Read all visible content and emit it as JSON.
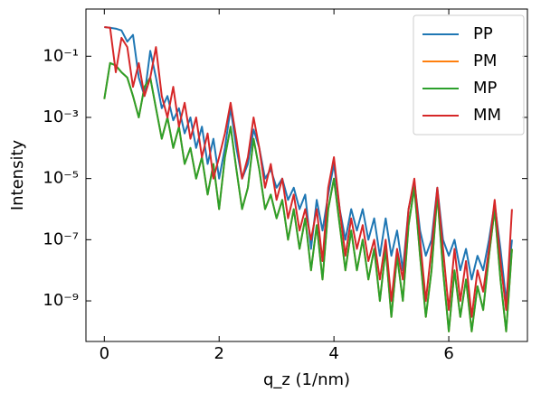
{
  "chart_data": {
    "type": "line",
    "x_label": "q_z (1/nm)",
    "y_label": "Intensity",
    "log_y": true,
    "legend": "upper right",
    "xlim": [
      -0.32,
      7.37
    ],
    "ylim": [
      3.5,
      4.7e-11
    ],
    "xticks": [
      0,
      2,
      4,
      6
    ],
    "yticks": [
      {
        "value": 0.1,
        "label": "10⁻¹"
      },
      {
        "value": 0.001,
        "label": "10⁻³"
      },
      {
        "value": 1e-05,
        "label": "10⁻⁵"
      },
      {
        "value": 1e-07,
        "label": "10⁻⁷"
      },
      {
        "value": 1e-09,
        "label": "10⁻⁹"
      }
    ],
    "x": [
      0.0,
      0.1,
      0.2,
      0.3,
      0.4,
      0.5,
      0.6,
      0.7,
      0.8,
      0.9,
      1.0,
      1.1,
      1.2,
      1.3,
      1.4,
      1.5,
      1.6,
      1.7,
      1.8,
      1.9,
      2.0,
      2.1,
      2.2,
      2.3,
      2.4,
      2.5,
      2.6,
      2.7,
      2.8,
      2.9,
      3.0,
      3.1,
      3.2,
      3.3,
      3.4,
      3.5,
      3.6,
      3.7,
      3.8,
      3.9,
      4.0,
      4.1,
      4.2,
      4.3,
      4.4,
      4.5,
      4.6,
      4.7,
      4.8,
      4.9,
      5.0,
      5.1,
      5.2,
      5.3,
      5.4,
      5.5,
      5.6,
      5.7,
      5.8,
      5.9,
      6.0,
      6.1,
      6.2,
      6.3,
      6.4,
      6.5,
      6.6,
      6.7,
      6.8,
      6.9,
      7.0,
      7.1
    ],
    "series": [
      {
        "name": "PP",
        "color": "#1f77b4",
        "values": [
          0.9,
          0.85,
          0.8,
          0.7,
          0.3,
          0.5,
          0.02,
          0.005,
          0.15,
          0.02,
          0.002,
          0.005,
          0.0008,
          0.002,
          0.0003,
          0.001,
          0.0001,
          0.0005,
          3e-05,
          0.0002,
          1e-05,
          0.0001,
          0.002,
          0.0001,
          1e-05,
          3e-05,
          0.0004,
          0.0001,
          1e-05,
          2e-05,
          5e-06,
          1e-05,
          2e-06,
          5e-06,
          1e-06,
          3e-06,
          5e-08,
          2e-06,
          2e-07,
          3e-06,
          3e-05,
          1e-06,
          1e-07,
          1e-06,
          2e-07,
          1e-06,
          1e-07,
          5e-07,
          3e-08,
          5e-07,
          3e-08,
          2e-07,
          1e-08,
          1e-06,
          8e-06,
          2e-07,
          3e-08,
          1e-07,
          5e-06,
          1e-07,
          3e-08,
          1e-07,
          1e-08,
          5e-08,
          5e-09,
          3e-08,
          1e-08,
          1e-07,
          1.5e-06,
          5e-08,
          1e-09,
          1e-07
        ]
      },
      {
        "name": "PM",
        "color": "#ff7f0e",
        "values": [
          0.004,
          0.06,
          0.05,
          0.03,
          0.02,
          0.005,
          0.001,
          0.01,
          0.02,
          0.002,
          0.0002,
          0.001,
          0.0001,
          0.0005,
          3e-05,
          0.0001,
          1e-05,
          5e-05,
          3e-06,
          3e-05,
          1e-06,
          5e-05,
          0.0005,
          2e-05,
          1e-06,
          5e-06,
          0.0002,
          2e-05,
          1e-06,
          3e-06,
          5e-07,
          2e-06,
          1e-07,
          1e-06,
          5e-08,
          5e-07,
          1e-08,
          3e-07,
          5e-09,
          1e-06,
          1e-05,
          3e-07,
          1e-08,
          2e-07,
          1e-08,
          1e-07,
          5e-09,
          5e-08,
          1e-09,
          5e-08,
          3e-10,
          3e-08,
          1e-09,
          3e-07,
          5e-06,
          3e-08,
          3e-10,
          1e-08,
          3e-06,
          1e-08,
          1e-10,
          1e-08,
          3e-10,
          5e-09,
          1e-10,
          3e-09,
          5e-10,
          3e-08,
          1e-06,
          5e-09,
          1e-10,
          5e-08
        ]
      },
      {
        "name": "MP",
        "color": "#2ca02c",
        "values": [
          0.004,
          0.06,
          0.05,
          0.03,
          0.02,
          0.005,
          0.001,
          0.01,
          0.02,
          0.002,
          0.0002,
          0.001,
          0.0001,
          0.0005,
          3e-05,
          0.0001,
          1e-05,
          5e-05,
          3e-06,
          3e-05,
          1e-06,
          5e-05,
          0.0005,
          2e-05,
          1e-06,
          5e-06,
          0.0002,
          2e-05,
          1e-06,
          3e-06,
          5e-07,
          2e-06,
          1e-07,
          1e-06,
          5e-08,
          5e-07,
          1e-08,
          3e-07,
          5e-09,
          1e-06,
          1e-05,
          3e-07,
          1e-08,
          2e-07,
          1e-08,
          1e-07,
          5e-09,
          5e-08,
          1e-09,
          5e-08,
          3e-10,
          3e-08,
          1e-09,
          3e-07,
          5e-06,
          3e-08,
          3e-10,
          1e-08,
          3e-06,
          1e-08,
          1e-10,
          1e-08,
          3e-10,
          5e-09,
          1e-10,
          3e-09,
          5e-10,
          3e-08,
          1e-06,
          5e-09,
          1e-10,
          5e-08
        ]
      },
      {
        "name": "MM",
        "color": "#d62728",
        "values": [
          0.9,
          0.85,
          0.03,
          0.4,
          0.2,
          0.01,
          0.06,
          0.005,
          0.02,
          0.2,
          0.005,
          0.001,
          0.01,
          0.0005,
          0.003,
          0.0002,
          0.001,
          5e-05,
          0.0003,
          1e-05,
          5e-05,
          0.0003,
          0.003,
          0.0002,
          1e-05,
          5e-05,
          0.001,
          0.0001,
          5e-06,
          3e-05,
          2e-06,
          1e-05,
          5e-07,
          3e-06,
          2e-07,
          1e-06,
          1e-07,
          1e-06,
          2e-08,
          5e-06,
          5e-05,
          1e-06,
          3e-08,
          5e-07,
          5e-08,
          3e-07,
          2e-08,
          1e-07,
          5e-09,
          1e-07,
          1e-09,
          5e-08,
          5e-09,
          1e-06,
          1e-05,
          1e-07,
          1e-09,
          5e-08,
          5e-06,
          5e-08,
          5e-10,
          5e-08,
          1e-09,
          2e-08,
          3e-10,
          1e-08,
          2e-09,
          5e-08,
          2e-06,
          2e-08,
          5e-10,
          1e-06
        ]
      }
    ]
  }
}
